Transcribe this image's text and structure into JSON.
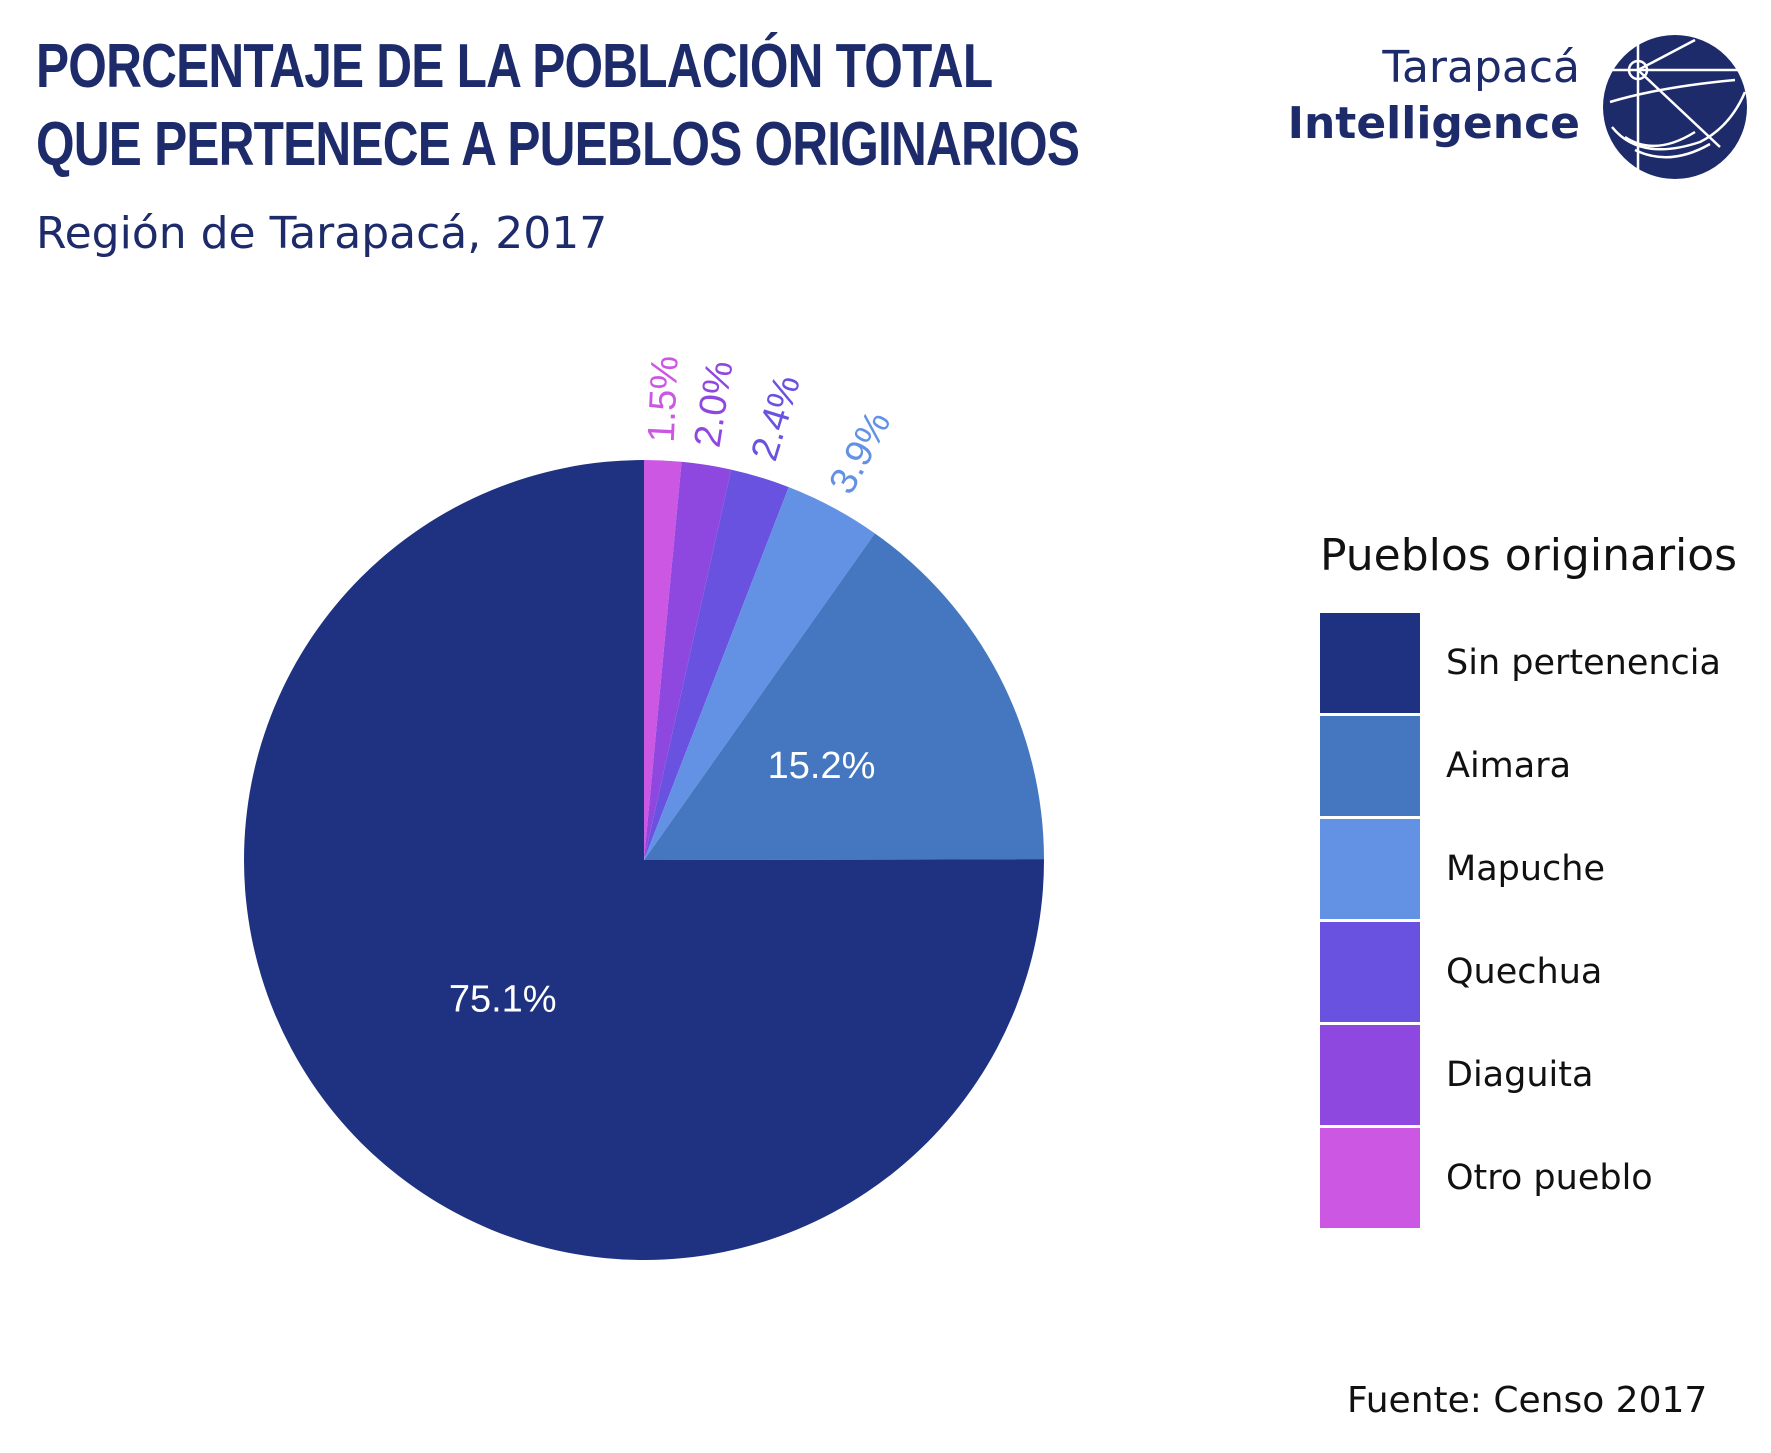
{
  "header": {
    "title_line1": "PORCENTAJE DE LA POBLACIÓN TOTAL",
    "title_line2": "QUE PERTENECE A PUEBLOS ORIGINARIOS",
    "subtitle": "Región de Tarapacá, 2017"
  },
  "logo": {
    "line1": "Tarapacá",
    "line2": "Intelligence",
    "icon": "globe-compass-icon",
    "color": "#1d2b6b"
  },
  "legend": {
    "title": "Pueblos originarios",
    "placement": "right"
  },
  "source": "Fuente: Censo 2017",
  "chart_data": {
    "type": "pie",
    "title": "PORCENTAJE DE LA POBLACIÓN TOTAL QUE PERTENECE A PUEBLOS ORIGINARIOS",
    "subtitle": "Región de Tarapacá, 2017",
    "slices": [
      {
        "name": "Sin pertenencia",
        "value": 75.1,
        "label": "75.1%",
        "color": "#1f3282",
        "label_color": "#ffffff"
      },
      {
        "name": "Aimara",
        "value": 15.2,
        "label": "15.2%",
        "color": "#4577c1",
        "label_color": "#ffffff"
      },
      {
        "name": "Mapuche",
        "value": 3.9,
        "label": "3.9%",
        "color": "#6392e5",
        "label_color": "#6392e5"
      },
      {
        "name": "Quechua",
        "value": 2.4,
        "label": "2.4%",
        "color": "#6a52e0",
        "label_color": "#6a52e0"
      },
      {
        "name": "Diaguita",
        "value": 2.0,
        "label": "2.0%",
        "color": "#8f48df",
        "label_color": "#8f48df"
      },
      {
        "name": "Otro pueblo",
        "value": 1.5,
        "label": "1.5%",
        "color": "#cb57e2",
        "label_color": "#cb57e2"
      }
    ]
  }
}
